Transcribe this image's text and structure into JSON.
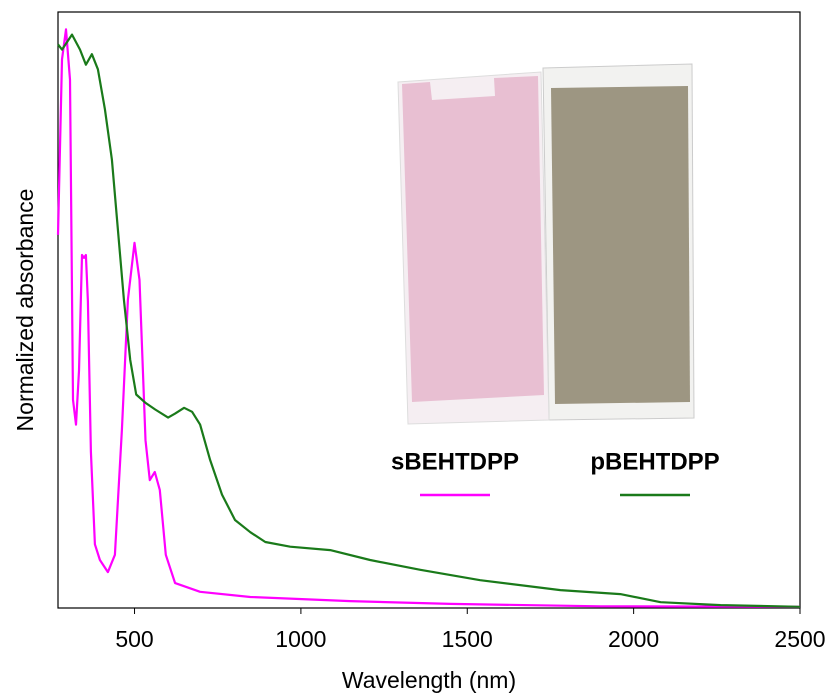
{
  "chart_data": {
    "type": "line",
    "x_label": "Wavelength (nm)",
    "y_label": "Normalized absorbance",
    "xlim": [
      270,
      2500
    ],
    "ylim": [
      0,
      1.03
    ],
    "xticks": [
      500,
      1000,
      1500,
      2000,
      2500
    ],
    "series": [
      {
        "name": "sBEHTDPP",
        "color": "#ff00ff",
        "x": [
          270,
          282,
          294,
          306,
          315,
          324,
          333,
          342,
          348,
          354,
          360,
          369,
          381,
          396,
          420,
          441,
          462,
          480,
          500,
          515,
          533,
          546,
          561,
          576,
          594,
          622,
          697,
          848,
          1148,
          1449,
          1900,
          2500
        ],
        "values": [
          0.645,
          0.948,
          1.0,
          0.913,
          0.36,
          0.317,
          0.41,
          0.61,
          0.605,
          0.61,
          0.53,
          0.27,
          0.11,
          0.083,
          0.062,
          0.092,
          0.308,
          0.533,
          0.631,
          0.567,
          0.29,
          0.221,
          0.235,
          0.204,
          0.092,
          0.043,
          0.028,
          0.019,
          0.012,
          0.007,
          0.003,
          0.002
        ]
      },
      {
        "name": "pBEHTDPP",
        "color": "#1a7a1a",
        "x": [
          270,
          282,
          312,
          336,
          354,
          372,
          390,
          411,
          432,
          450,
          468,
          487,
          505,
          532,
          562,
          601,
          622,
          649,
          673,
          697,
          727,
          763,
          802,
          848,
          893,
          968,
          1088,
          1208,
          1359,
          1539,
          1780,
          1960,
          2081,
          2261,
          2500
        ],
        "values": [
          0.974,
          0.965,
          0.991,
          0.965,
          0.939,
          0.957,
          0.931,
          0.862,
          0.775,
          0.654,
          0.533,
          0.429,
          0.369,
          0.355,
          0.343,
          0.329,
          0.336,
          0.346,
          0.339,
          0.317,
          0.256,
          0.196,
          0.152,
          0.131,
          0.114,
          0.106,
          0.1,
          0.083,
          0.066,
          0.048,
          0.031,
          0.024,
          0.01,
          0.005,
          0.002
        ]
      }
    ]
  }
}
